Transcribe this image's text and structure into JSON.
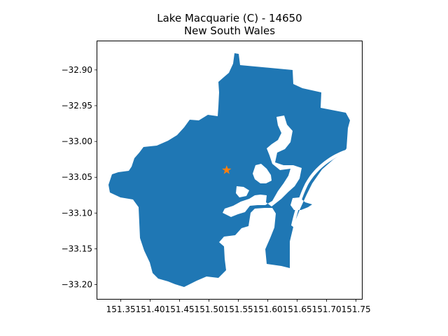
{
  "map": {
    "title_line1": "Lake Macquarie (C) - 14650",
    "title_line2": "New South Wales",
    "region_color": "#1f77b4",
    "marker_color": "#ff7f0e",
    "marker_shape": "star",
    "marker_lon": 151.53,
    "marker_lat": -33.04
  },
  "chart_data": {
    "type": "map",
    "title": "Lake Macquarie (C) - 14650\nNew South Wales",
    "xlim": [
      151.31,
      151.76
    ],
    "ylim": [
      -33.22,
      -32.86
    ],
    "x_ticks": [
      151.35,
      151.4,
      151.45,
      151.5,
      151.55,
      151.6,
      151.65,
      151.7,
      151.75
    ],
    "x_tick_labels": [
      "151.35",
      "151.40",
      "151.45",
      "151.50",
      "151.55",
      "151.60",
      "151.65",
      "151.70",
      "151.75"
    ],
    "y_ticks": [
      -32.9,
      -32.95,
      -33.0,
      -33.05,
      -33.1,
      -33.15,
      -33.2
    ],
    "y_tick_labels": [
      "−32.90",
      "−32.95",
      "−33.00",
      "−33.05",
      "−33.10",
      "−33.15",
      "−33.20"
    ],
    "grid": false,
    "marker": {
      "lon": 151.53,
      "lat": -33.04,
      "symbol": "star"
    }
  }
}
